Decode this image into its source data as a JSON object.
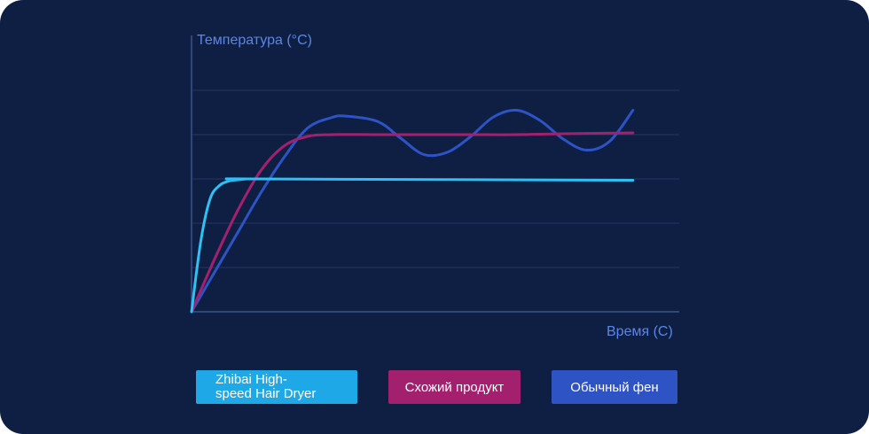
{
  "chart_data": {
    "type": "line",
    "title": "",
    "xlabel": "Время (С)",
    "ylabel": "Температура (°С)",
    "xlim": [
      0,
      100
    ],
    "ylim": [
      0,
      5
    ],
    "grid": true,
    "x_ticks_shown": false,
    "y_ticks_shown": false,
    "legend_position": "bottom",
    "series": [
      {
        "name": "Zhibai High-speed Hair Dryer",
        "color": "#2fc0f5",
        "x": [
          0,
          2,
          4,
          6,
          8,
          10,
          12,
          14,
          95
        ],
        "y": [
          0,
          1.6,
          2.55,
          2.85,
          2.95,
          2.98,
          3.0,
          3.0,
          2.97
        ]
      },
      {
        "name": "Схожий продукт",
        "color": "#a3206f",
        "x": [
          0,
          5,
          10,
          15,
          20,
          25,
          30,
          40,
          50,
          60,
          70,
          80,
          95
        ],
        "y": [
          0,
          1.2,
          2.3,
          3.2,
          3.75,
          3.96,
          4.0,
          4.0,
          4.0,
          4.0,
          4.0,
          4.02,
          4.04
        ]
      },
      {
        "name": "Обычный фен",
        "color": "#2d53c4",
        "x": [
          0,
          5,
          10,
          15,
          20,
          25,
          30,
          33,
          40,
          45,
          50,
          55,
          60,
          65,
          70,
          75,
          80,
          85,
          90,
          95
        ],
        "y": [
          0,
          0.9,
          1.8,
          2.7,
          3.5,
          4.15,
          4.38,
          4.42,
          4.3,
          3.92,
          3.55,
          3.6,
          3.95,
          4.4,
          4.55,
          4.32,
          3.9,
          3.65,
          3.85,
          4.55
        ]
      }
    ]
  },
  "legend": {
    "items": [
      {
        "line1": "Zhibai High-",
        "line2": "speed Hair Dryer"
      },
      {
        "line1": "Схожий продукт"
      },
      {
        "line1": "Обычный фен"
      }
    ]
  }
}
